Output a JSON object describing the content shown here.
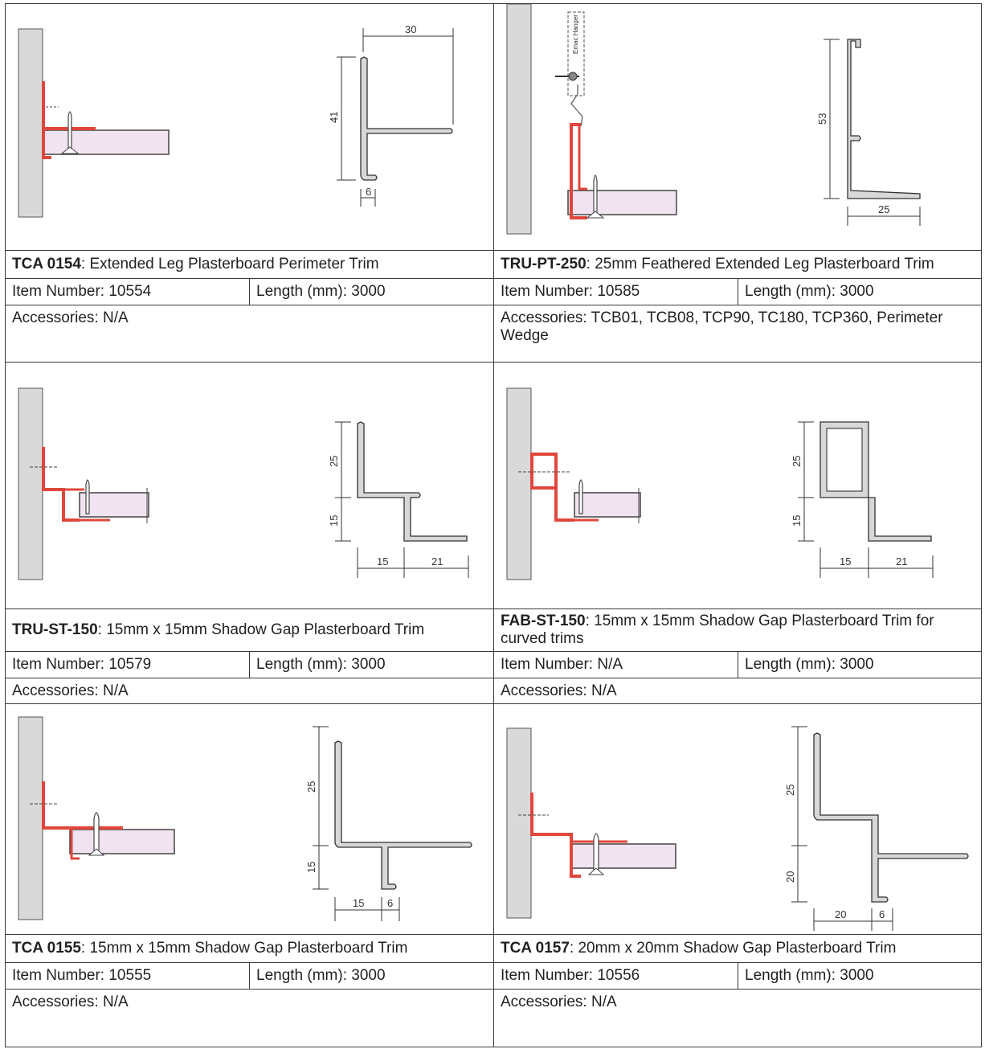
{
  "products": [
    {
      "code": "TCA 0154",
      "name": ": Extended Leg Plasterboard Perimeter Trim",
      "item_number": "Item Number: 10554",
      "length": "Length (mm): 3000",
      "accessories": "Accessories: N/A",
      "dims": [
        "30",
        "41",
        "6"
      ]
    },
    {
      "code": "TRU-PT-250",
      "name": ": 25mm Feathered Extended Leg Plasterboard Trim",
      "item_number": "Item Number: 10585",
      "length": "Length (mm): 3000",
      "accessories": "Accessories: TCB01, TCB08, TCP90, TC180, TCP360, Perimeter Wedge",
      "dims": [
        "53",
        "25"
      ],
      "hanger_label": "Emac Hanger"
    },
    {
      "code": "TRU-ST-150",
      "name": ": 15mm x 15mm Shadow Gap Plasterboard Trim",
      "item_number": "Item Number: 10579",
      "length": "Length (mm): 3000",
      "accessories": "Accessories: N/A",
      "dims": [
        "25",
        "15",
        "15",
        "21"
      ]
    },
    {
      "code": "FAB-ST-150",
      "name": ": 15mm x 15mm Shadow Gap Plasterboard Trim for curved trims",
      "item_number": "Item Number: N/A",
      "length": "Length (mm): 3000",
      "accessories": "Accessories: N/A",
      "dims": [
        "25",
        "15",
        "15",
        "21"
      ]
    },
    {
      "code": "TCA 0155",
      "name": ": 15mm x 15mm Shadow Gap Plasterboard Trim",
      "item_number": "Item Number: 10555",
      "length": "Length (mm): 3000",
      "accessories": "Accessories: N/A",
      "dims": [
        "25",
        "15",
        "15",
        "6"
      ]
    },
    {
      "code": "TCA 0157",
      "name": ": 20mm x 20mm Shadow Gap Plasterboard Trim",
      "item_number": "Item Number: 10556",
      "length": "Length (mm): 3000",
      "accessories": "Accessories: N/A",
      "dims": [
        "25",
        "20",
        "20",
        "6"
      ]
    }
  ],
  "colors": {
    "wall": "#d9d9d9",
    "trim_red": "#e0473c",
    "board_pink": "#f1e4f0",
    "profile_grey": "#d8d8d8",
    "line": "#3a3a3a"
  }
}
